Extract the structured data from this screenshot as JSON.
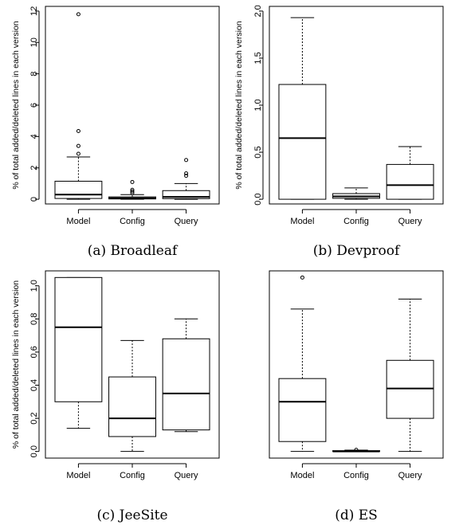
{
  "chart_data": [
    {
      "type": "boxplot",
      "caption": "(a) Broadleaf",
      "ylabel": "% of total added/deleted lines in each version",
      "categories": [
        "Model",
        "Config",
        "Query"
      ],
      "ylim": [
        -0.3,
        12.3
      ],
      "yticks": [
        0,
        2,
        4,
        6,
        8,
        10,
        12
      ],
      "boxes": [
        {
          "min": 0,
          "q1": 0.05,
          "median": 0.3,
          "q3": 1.15,
          "max": 2.7,
          "outliers": [
            2.9,
            3.4,
            4.35,
            11.8
          ]
        },
        {
          "min": 0,
          "q1": 0.02,
          "median": 0.07,
          "q3": 0.15,
          "max": 0.3,
          "outliers": [
            0.4,
            0.5,
            0.6,
            1.1
          ]
        },
        {
          "min": 0,
          "q1": 0.04,
          "median": 0.15,
          "q3": 0.55,
          "max": 1.0,
          "outliers": [
            1.5,
            1.65,
            2.5
          ]
        }
      ]
    },
    {
      "type": "boxplot",
      "caption": "(b) Devproof",
      "ylabel": "% of total added/deleted lines in each version",
      "categories": [
        "Model",
        "Config",
        "Query"
      ],
      "ylim": [
        -0.05,
        2.05
      ],
      "yticks": [
        0.0,
        0.5,
        1.0,
        1.5,
        2.0
      ],
      "ytick_labels": [
        "0.0",
        "0.5",
        "1.0",
        "1.5",
        "2.0"
      ],
      "boxes": [
        {
          "min": 0,
          "q1": 0,
          "median": 0.65,
          "q3": 1.22,
          "max": 1.93,
          "outliers": []
        },
        {
          "min": 0,
          "q1": 0.01,
          "median": 0.03,
          "q3": 0.06,
          "max": 0.12,
          "outliers": []
        },
        {
          "min": 0,
          "q1": 0,
          "median": 0.15,
          "q3": 0.37,
          "max": 0.56,
          "outliers": []
        }
      ]
    },
    {
      "type": "boxplot",
      "caption": "(c) JeeSite",
      "ylabel": "% of total added/deleted lines in each version",
      "categories": [
        "Model",
        "Config",
        "Query"
      ],
      "ylim": [
        -0.04,
        1.09
      ],
      "yticks": [
        0.0,
        0.2,
        0.4,
        0.6,
        0.8,
        1.0
      ],
      "ytick_labels": [
        "0.0",
        "0.2",
        "0.4",
        "0.6",
        "0.8",
        "1.0"
      ],
      "boxes": [
        {
          "min": 0.14,
          "q1": 0.3,
          "median": 0.75,
          "q3": 1.05,
          "max": 1.05,
          "outliers": []
        },
        {
          "min": 0,
          "q1": 0.09,
          "median": 0.2,
          "q3": 0.45,
          "max": 0.67,
          "outliers": []
        },
        {
          "min": 0.12,
          "q1": 0.13,
          "median": 0.35,
          "q3": 0.68,
          "max": 0.8,
          "outliers": []
        }
      ]
    },
    {
      "type": "boxplot",
      "caption": "(d) ES",
      "ylabel": "",
      "categories": [
        "Model",
        "Config",
        "Query"
      ],
      "ylim": [
        -0.04,
        1.09
      ],
      "yticks": [],
      "boxes": [
        {
          "min": 0,
          "q1": 0.06,
          "median": 0.3,
          "q3": 0.44,
          "max": 0.86,
          "outliers": [
            1.05
          ]
        },
        {
          "min": 0,
          "q1": 0,
          "median": 0,
          "q3": 0.005,
          "max": 0.008,
          "outliers": [
            0.01
          ]
        },
        {
          "min": 0,
          "q1": 0.2,
          "median": 0.38,
          "q3": 0.55,
          "max": 0.92,
          "outliers": []
        }
      ]
    }
  ]
}
